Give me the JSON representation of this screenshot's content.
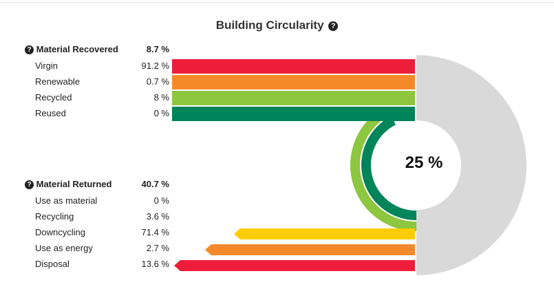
{
  "title": "Building Circularity",
  "title_icon": "question-circle-icon",
  "center_value": "25 %",
  "recovered": {
    "label": "Material Recovered",
    "value": "8.7 %",
    "icon": "question-circle-icon",
    "items": [
      {
        "label": "Virgin",
        "value": "91.2 %"
      },
      {
        "label": "Renewable",
        "value": "0.7 %"
      },
      {
        "label": "Recycled",
        "value": "8 %"
      },
      {
        "label": "Reused",
        "value": "0 %"
      }
    ]
  },
  "returned": {
    "label": "Material Returned",
    "value": "40.7 %",
    "icon": "question-circle-icon",
    "items": [
      {
        "label": "Use as material",
        "value": "0 %"
      },
      {
        "label": "Recycling",
        "value": "3.6 %"
      },
      {
        "label": "Downcycling",
        "value": "71.4 %"
      },
      {
        "label": "Use as energy",
        "value": "2.7 %"
      },
      {
        "label": "Disposal",
        "value": "13.6 %"
      }
    ]
  },
  "chart_data": {
    "type": "bar",
    "title": "Building Circularity",
    "center_value": 25,
    "recovered_total": 8.7,
    "returned_total": 40.7,
    "recovered": {
      "categories": [
        "Virgin",
        "Renewable",
        "Recycled",
        "Reused"
      ],
      "values": [
        91.2,
        0.7,
        8,
        0
      ],
      "colors": [
        "#ee1d3a",
        "#f5892a",
        "#8dc63f",
        "#00845a"
      ]
    },
    "returned": {
      "categories": [
        "Use as material",
        "Recycling",
        "Downcycling",
        "Use as energy",
        "Disposal"
      ],
      "values": [
        0,
        3.6,
        71.4,
        2.7,
        13.6
      ],
      "colors": [
        "#00845a",
        "#8dc63f",
        "#ffcc00",
        "#f5892a",
        "#ee1d3a"
      ]
    },
    "ring_colors": {
      "background": "#d9d9d9",
      "outer": "#8dc63f",
      "inner": "#00845a"
    }
  }
}
